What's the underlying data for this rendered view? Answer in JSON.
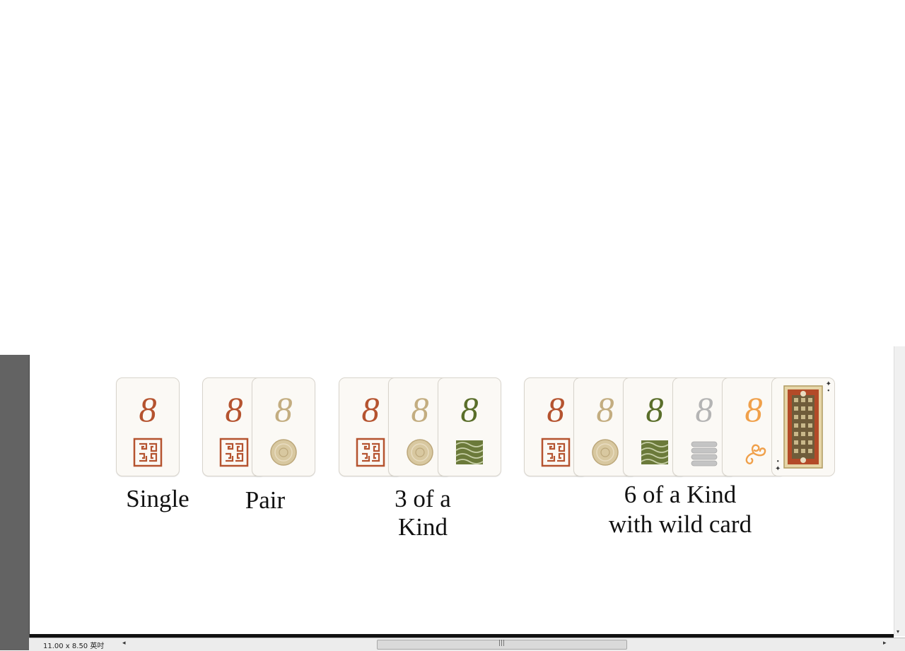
{
  "labels": {
    "single": "Single",
    "pair": "Pair",
    "three_line1": "3 of a",
    "three_line2": "Kind",
    "six_line1": "6 of a Kind",
    "six_line2": "with wild card"
  },
  "card_rank": "8",
  "suit_colors": {
    "red": "#b5532f",
    "tan": "#c3ad80",
    "green": "#5a6e2a",
    "silver": "#b4b4b4",
    "orange": "#f0a04a"
  },
  "status_bar": {
    "page_size": "11.00 x 8.50 英吋",
    "scroll_left_icon": "◂",
    "scroll_right_icon": "▸",
    "grip_icon": "|||"
  },
  "vscroll": {
    "down_icon": "▾"
  }
}
